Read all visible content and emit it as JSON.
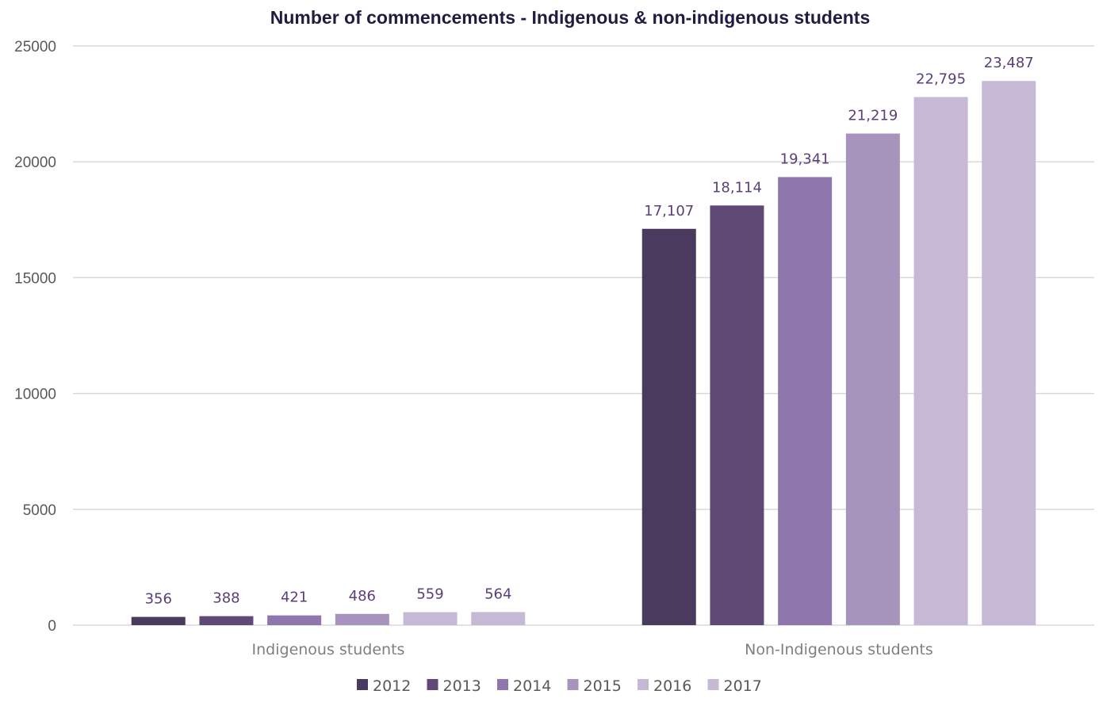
{
  "chart_data": {
    "type": "bar",
    "title": "Number of commencements - Indigenous & non-indigenous students",
    "categories": [
      "Indigenous students",
      "Non-Indigenous students"
    ],
    "ylim": [
      0,
      25000
    ],
    "yticks": [
      0,
      5000,
      10000,
      15000,
      20000,
      25000
    ],
    "ytick_labels": [
      "0",
      "5000",
      "10000",
      "15000",
      "20000",
      "25000"
    ],
    "grid": true,
    "legend_position": "bottom",
    "series": [
      {
        "name": "2012",
        "color": "#4a3a5e",
        "values": [
          356,
          17107
        ],
        "labels": [
          "356",
          "17,107"
        ]
      },
      {
        "name": "2013",
        "color": "#5f4a75",
        "values": [
          388,
          18114
        ],
        "labels": [
          "388",
          "18,114"
        ]
      },
      {
        "name": "2014",
        "color": "#8e77ad",
        "values": [
          421,
          19341
        ],
        "labels": [
          "421",
          "19,341"
        ]
      },
      {
        "name": "2015",
        "color": "#a694bd",
        "values": [
          486,
          21219
        ],
        "labels": [
          "486",
          "21,219"
        ]
      },
      {
        "name": "2016",
        "color": "#c7b9d6",
        "values": [
          559,
          22795
        ],
        "labels": [
          "559",
          "22,795"
        ]
      },
      {
        "name": "2017",
        "color": "#c7b9d6",
        "values": [
          564,
          23487
        ],
        "labels": [
          "564",
          "23,487"
        ]
      }
    ]
  }
}
